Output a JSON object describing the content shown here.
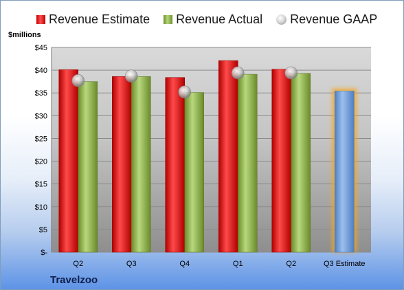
{
  "chart_data": {
    "type": "bar",
    "ylabel": "$millions",
    "ylim": [
      0,
      45
    ],
    "yticks": [
      "$-",
      "$5",
      "$10",
      "$15",
      "$20",
      "$25",
      "$30",
      "$35",
      "$40",
      "$45"
    ],
    "categories": [
      "Q2",
      "Q3",
      "Q4",
      "Q1",
      "Q2",
      "Q3 Estimate"
    ],
    "series": [
      {
        "name": "Revenue Estimate",
        "kind": "bar",
        "color": "#d81e1e",
        "values": [
          40.1,
          38.6,
          38.4,
          42.1,
          40.2,
          null
        ]
      },
      {
        "name": "Revenue Actual",
        "kind": "bar",
        "color": "#8aad48",
        "values": [
          37.5,
          38.6,
          35.1,
          39.1,
          39.3,
          null
        ]
      },
      {
        "name": "Revenue GAAP",
        "kind": "marker",
        "color": "#c0c0c0",
        "values": [
          37.7,
          38.7,
          35.2,
          39.4,
          39.4,
          null
        ]
      },
      {
        "name": "Q3 Estimate",
        "kind": "bar",
        "color": "#6b9bd8",
        "glow": "#f5a623",
        "values": [
          null,
          null,
          null,
          null,
          null,
          35.4
        ]
      }
    ],
    "grid": true,
    "legend": "top"
  },
  "company": "Travelzoo"
}
